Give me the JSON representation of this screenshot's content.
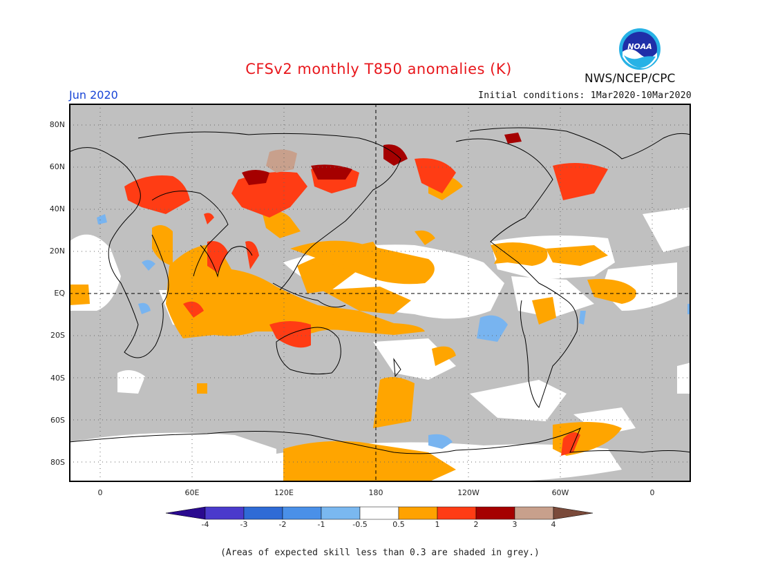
{
  "header": {
    "title": "CFSv2 monthly T850 anomalies (K)",
    "month": "Jun 2020",
    "initial_conditions": "Initial conditions: 1Mar2020-10Mar2020",
    "agency": "NWS/NCEP/CPC",
    "logo_text": "NOAA"
  },
  "map": {
    "lat_labels": [
      "80N",
      "60N",
      "40N",
      "20N",
      "EQ",
      "20S",
      "40S",
      "60S",
      "80S"
    ],
    "lon_labels": [
      "0",
      "60E",
      "120E",
      "180",
      "120W",
      "60W",
      "0"
    ],
    "colors": {
      "grey": "#c0c0c0",
      "white": "#ffffff",
      "anom_0_5_1": "#ffa500",
      "anom_1_2": "#ff3c14",
      "anom_2_3": "#a50000",
      "anom_3_4": "#c8a08c",
      "anom_neg_0_5_1": "#78b4f0",
      "coast": "#000000"
    }
  },
  "colorbar": {
    "labels": [
      "-4",
      "-3",
      "-2",
      "-1",
      "-0.5",
      "0.5",
      "1",
      "2",
      "3",
      "4"
    ],
    "colors": [
      "#2a0a8f",
      "#4a3acc",
      "#2f6bd6",
      "#4a90e8",
      "#7ab8f0",
      "#ffffff",
      "#ffa200",
      "#ff3c14",
      "#a50000",
      "#c8a08c",
      "#7a4a3a"
    ]
  },
  "footnote": "(Areas of expected skill less than 0.3 are shaded in grey.)"
}
